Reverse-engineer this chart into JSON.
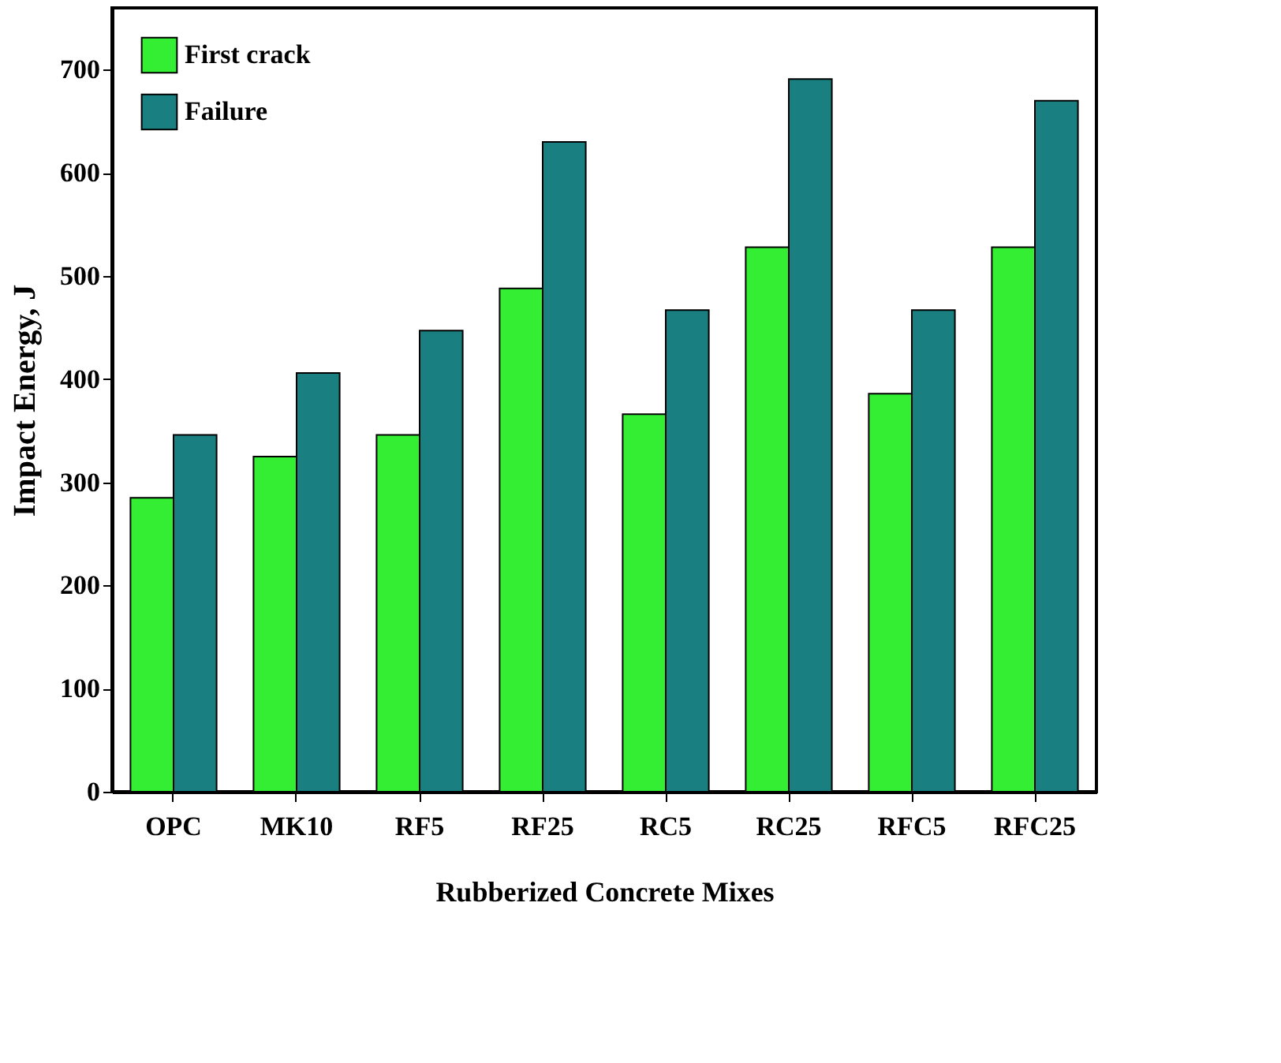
{
  "chart_data": {
    "type": "bar",
    "xlabel": "Rubberized Concrete Mixes",
    "ylabel": "Impact Energy, J",
    "categories": [
      "OPC",
      "MK10",
      "RF5",
      "RF25",
      "RC5",
      "RC25",
      "RFC5",
      "RFC25"
    ],
    "series": [
      {
        "name": "First crack",
        "color": "#33ee33",
        "values": [
          285,
          325,
          346,
          488,
          366,
          528,
          386,
          528
        ]
      },
      {
        "name": "Failure",
        "color": "#1a7f80",
        "values": [
          346,
          406,
          447,
          630,
          467,
          691,
          467,
          670
        ]
      }
    ],
    "ylim": [
      0,
      760
    ],
    "yticks": [
      0,
      100,
      200,
      300,
      400,
      500,
      600,
      700
    ],
    "grid": false,
    "legend": "top left"
  }
}
